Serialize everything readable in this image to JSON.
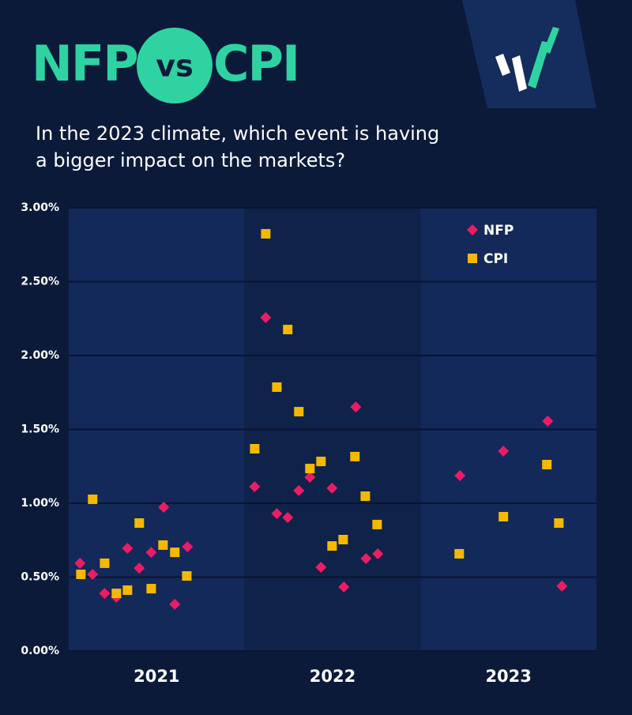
{
  "chart_data": {
    "type": "scatter",
    "title": [
      "NFP",
      "vs",
      "CPI"
    ],
    "subtitle": [
      "In the 2023 climate, which event is having",
      "a bigger impact on the markets?"
    ],
    "xlim": [
      2020.5,
      2023.5
    ],
    "xticks": [
      2021,
      2022,
      2023
    ],
    "ylim": [
      0,
      3
    ],
    "yticks": [
      {
        "value": 0,
        "label": "0.00%"
      },
      {
        "value": 0.5,
        "label": "0.50%"
      },
      {
        "value": 1,
        "label": "1.00%"
      },
      {
        "value": 1.5,
        "label": "1.50%"
      },
      {
        "value": 2,
        "label": "2.00%"
      },
      {
        "value": 2.5,
        "label": "2.50%"
      },
      {
        "value": 3,
        "label": "3.00%"
      }
    ],
    "grid": true,
    "legend": "top-right",
    "series": [
      {
        "name": "NFP",
        "color": "#ec1c64",
        "marker": "diamond",
        "x": [
          2020.564,
          2020.636,
          2020.704,
          2020.771,
          2020.834,
          2020.901,
          2020.969,
          2021.04,
          2021.103,
          2021.175,
          2021.557,
          2021.62,
          2021.683,
          2021.745,
          2021.808,
          2021.871,
          2021.934,
          2021.997,
          2022.064,
          2022.132,
          2022.19,
          2022.257,
          2022.724,
          2022.971,
          2023.223,
          2023.304
        ],
        "values": [
          0.594,
          0.519,
          0.39,
          0.364,
          0.695,
          0.561,
          0.668,
          0.973,
          0.316,
          0.706,
          1.112,
          2.257,
          0.93,
          0.904,
          1.086,
          1.176,
          0.567,
          1.102,
          0.433,
          1.652,
          0.626,
          0.658,
          1.187,
          1.353,
          1.556,
          0.439
        ]
      },
      {
        "name": "CPI",
        "color": "#f6b900",
        "marker": "square",
        "x": [
          2020.569,
          2020.636,
          2020.704,
          2020.771,
          2020.834,
          2020.901,
          2020.969,
          2021.036,
          2021.103,
          2021.171,
          2021.557,
          2021.62,
          2021.683,
          2021.745,
          2021.808,
          2021.871,
          2021.934,
          2021.997,
          2022.06,
          2022.127,
          2022.186,
          2022.253,
          2022.72,
          2022.971,
          2023.218,
          2023.286
        ],
        "values": [
          0.519,
          1.027,
          0.594,
          0.39,
          0.412,
          0.866,
          0.422,
          0.717,
          0.668,
          0.508,
          1.369,
          2.824,
          1.786,
          2.176,
          1.62,
          1.235,
          1.283,
          0.711,
          0.754,
          1.316,
          1.048,
          0.856,
          0.658,
          0.909,
          1.262,
          0.866
        ]
      }
    ]
  }
}
